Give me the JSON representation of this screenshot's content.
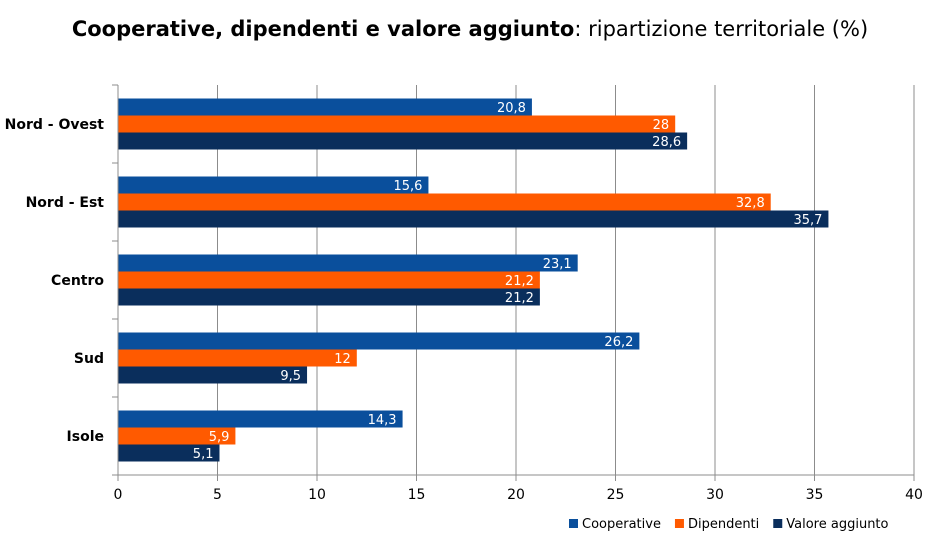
{
  "chart_data": {
    "type": "bar",
    "orientation": "horizontal",
    "title": {
      "main": "Cooperative, dipendenti e valore aggiunto",
      "sub": ": ripartizione territoriale (%)"
    },
    "categories": [
      "Nord - Ovest",
      "Nord - Est",
      "Centro",
      "Sud",
      "Isole"
    ],
    "series": [
      {
        "name": "Cooperative",
        "color": "#0a4f9c",
        "values": [
          20.8,
          15.6,
          23.1,
          26.2,
          14.3
        ],
        "labels": [
          "20,8",
          "15,6",
          "23,1",
          "26,2",
          "14,3"
        ]
      },
      {
        "name": "Dipendenti",
        "color": "#ff5a00",
        "values": [
          28,
          32.8,
          21.2,
          12,
          5.9
        ],
        "labels": [
          "28",
          "32,8",
          "21,2",
          "12",
          "5,9"
        ]
      },
      {
        "name": "Valore aggiunto",
        "color": "#0a2e5c",
        "values": [
          28.6,
          35.7,
          21.2,
          9.5,
          5.1
        ],
        "labels": [
          "28,6",
          "35,7",
          "21,2",
          "9,5",
          "5,1"
        ]
      }
    ],
    "xlim": [
      0,
      40
    ],
    "xticks": [
      0,
      5,
      10,
      15,
      20,
      25,
      30,
      35,
      40
    ],
    "grid": true,
    "legend_position": "bottom-right"
  }
}
